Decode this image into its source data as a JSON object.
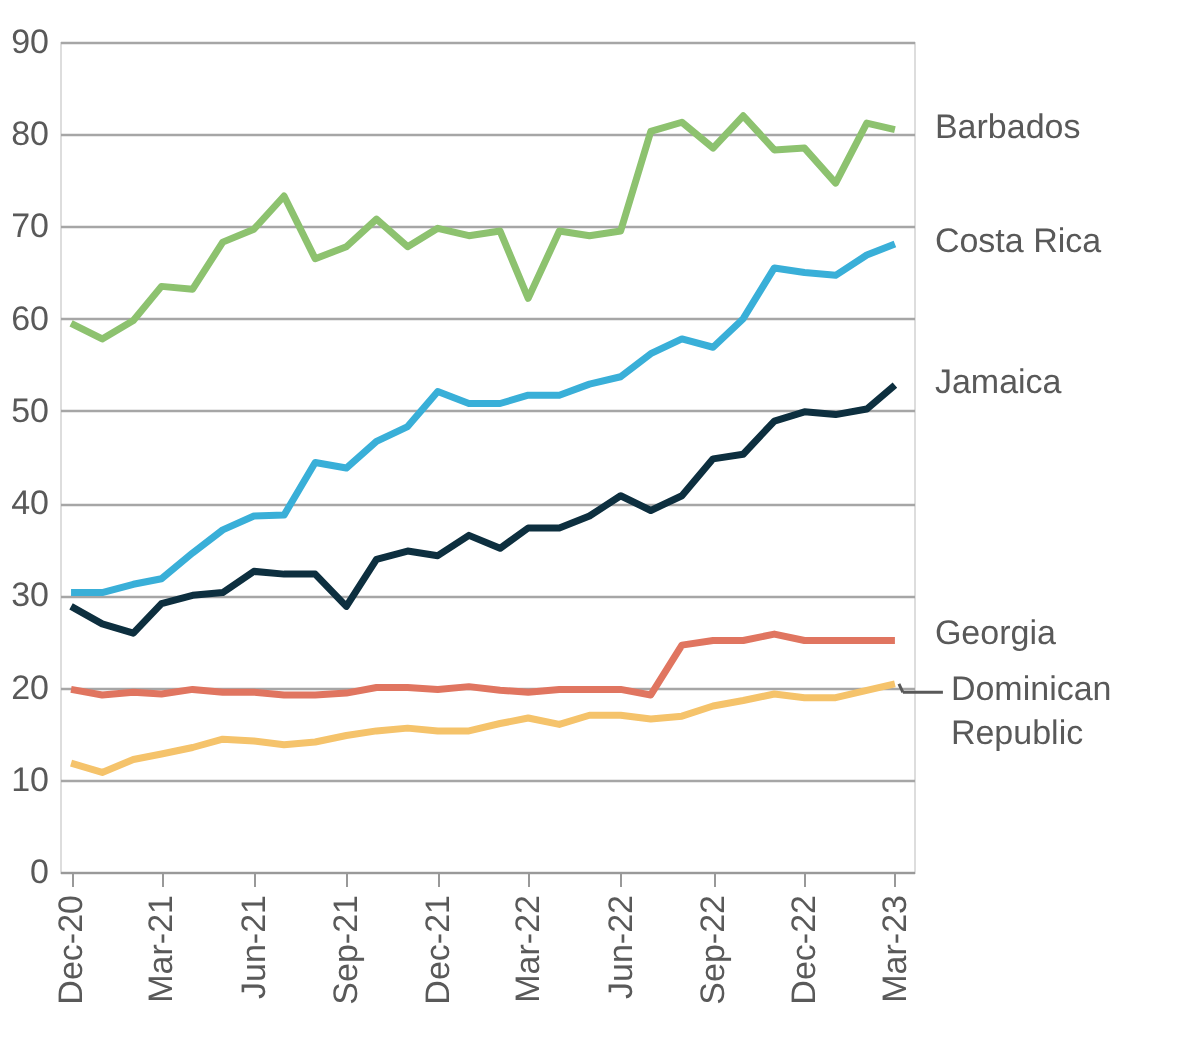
{
  "chart_data": {
    "type": "line",
    "x": [
      "2020-12",
      "2021-01",
      "2021-02",
      "2021-03",
      "2021-04",
      "2021-05",
      "2021-06",
      "2021-07",
      "2021-08",
      "2021-09",
      "2021-10",
      "2021-11",
      "2021-12",
      "2022-01",
      "2022-02",
      "2022-03",
      "2022-04",
      "2022-05",
      "2022-06",
      "2022-07",
      "2022-08",
      "2022-09",
      "2022-10",
      "2022-11",
      "2022-12",
      "2023-01",
      "2023-02",
      "2023-03"
    ],
    "series": [
      {
        "name": "Barbados",
        "color": "#8dc26f",
        "values": [
          59.5,
          57.8,
          59.8,
          63.5,
          63.2,
          68.3,
          69.7,
          73.3,
          66.5,
          67.8,
          70.8,
          67.8,
          69.8,
          69,
          69.5,
          62.2,
          69.5,
          69,
          69.5,
          80.3,
          81.3,
          78.5,
          82,
          78.3,
          78.5,
          74.7,
          81.2,
          80.5
        ]
      },
      {
        "name": "Costa Rica",
        "color": "#39afd8",
        "values": [
          30.3,
          30.3,
          31.2,
          31.8,
          34.6,
          37.1,
          38.6,
          38.7,
          44.4,
          43.8,
          46.7,
          48.3,
          52.1,
          50.8,
          50.8,
          51.7,
          51.7,
          52.9,
          53.7,
          56.2,
          57.8,
          56.9,
          60,
          65.5,
          65,
          64.7,
          66.9,
          68.1
        ]
      },
      {
        "name": "Jamaica",
        "color": "#0d2f3f",
        "values": [
          28.8,
          26.9,
          25.9,
          29.1,
          30,
          30.3,
          32.6,
          32.3,
          32.3,
          28.8,
          33.9,
          34.8,
          34.3,
          36.5,
          35.1,
          37.3,
          37.3,
          38.6,
          40.8,
          39.2,
          40.8,
          44.8,
          45.3,
          48.9,
          49.9,
          49.6,
          50.2,
          52.8
        ]
      },
      {
        "name": "Georgia",
        "color": "#e07560",
        "values": [
          19.8,
          19.2,
          19.5,
          19.3,
          19.8,
          19.5,
          19.5,
          19.2,
          19.2,
          19.4,
          20,
          20,
          19.8,
          20.1,
          19.7,
          19.5,
          19.8,
          19.8,
          19.8,
          19.2,
          24.6,
          25.1,
          25.1,
          25.8,
          25.1,
          25.1,
          25.1,
          25.1
        ]
      },
      {
        "name": "Dominican Republic",
        "color": "#f5c36b",
        "values": [
          11.8,
          10.8,
          12.2,
          12.8,
          13.5,
          14.4,
          14.2,
          13.8,
          14.1,
          14.8,
          15.3,
          15.6,
          15.3,
          15.3,
          16.1,
          16.7,
          16,
          17,
          17,
          16.6,
          16.9,
          18,
          18.6,
          19.3,
          18.9,
          18.9,
          19.7,
          20.4
        ]
      }
    ],
    "xlim": [
      "2020-11-20",
      "2023-03-20"
    ],
    "xticks": [
      {
        "value": "2020-12",
        "label": "Dec-20"
      },
      {
        "value": "2021-03",
        "label": "Mar-21"
      },
      {
        "value": "2021-06",
        "label": "Jun-21"
      },
      {
        "value": "2021-09",
        "label": "Sep-21"
      },
      {
        "value": "2021-12",
        "label": "Dec-21"
      },
      {
        "value": "2022-03",
        "label": "Mar-22"
      },
      {
        "value": "2022-06",
        "label": "Jun-22"
      },
      {
        "value": "2022-09",
        "label": "Sep-22"
      },
      {
        "value": "2022-12",
        "label": "Dec-22"
      },
      {
        "value": "2023-03",
        "label": "Mar-23"
      }
    ],
    "ylim": [
      0,
      90
    ],
    "yticks": [
      0,
      10,
      20,
      30,
      40,
      50,
      60,
      70,
      80,
      90
    ],
    "grid": "y",
    "legend": false,
    "line_style": "solid",
    "marker": "none"
  }
}
